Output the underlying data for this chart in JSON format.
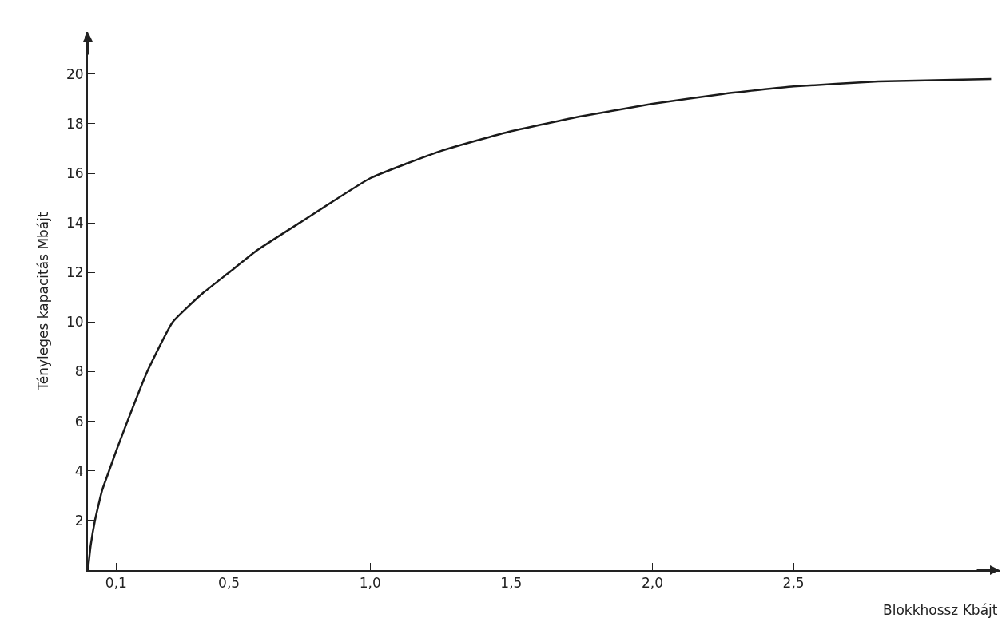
{
  "chart_data": {
    "type": "line",
    "xlabel": "Blokkhossz Kbájt",
    "ylabel": "Tényleges kapacitás Mbájt",
    "x": [
      0,
      0.01,
      0.025,
      0.05,
      0.075,
      0.1,
      0.14,
      0.21,
      0.3,
      0.4,
      0.5,
      0.6,
      0.75,
      1.0,
      1.25,
      1.5,
      1.75,
      2.0,
      2.25,
      2.5,
      2.8,
      3.2
    ],
    "series": [
      {
        "color": "#1a1a1a",
        "values": [
          0,
          1,
          2,
          3.2,
          4,
          4.8,
          6,
          8,
          10,
          11.1,
          12,
          12.9,
          14,
          15.8,
          16.9,
          17.7,
          18.3,
          18.8,
          19.2,
          19.5,
          19.7,
          19.8
        ]
      }
    ],
    "xlim": [
      0,
      3.23
    ],
    "ylim": [
      0,
      21.7
    ],
    "xticks": [
      {
        "value": 0.1,
        "label": "0,1"
      },
      {
        "value": 0.5,
        "label": "0,5"
      },
      {
        "value": 1.0,
        "label": "1,0"
      },
      {
        "value": 1.5,
        "label": "1,5"
      },
      {
        "value": 2.0,
        "label": "2,0"
      },
      {
        "value": 2.5,
        "label": "2,5"
      }
    ],
    "yticks": [
      2,
      4,
      6,
      8,
      10,
      12,
      14,
      16,
      18,
      20
    ],
    "marker": "none",
    "line_style": "solid"
  }
}
